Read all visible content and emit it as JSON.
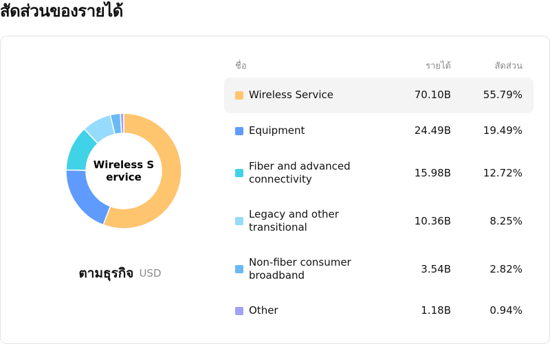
{
  "page": {
    "title": "สัดส่วนของรายได้"
  },
  "donut": {
    "center_label": "Wireless Service"
  },
  "caption": {
    "label": "ตามธุรกิจ",
    "unit": "USD"
  },
  "table": {
    "headers": {
      "name": "ชื่อ",
      "revenue": "รายได้",
      "share": "สัดส่วน"
    },
    "highlighted_index": 0
  },
  "chart_data": {
    "type": "pie",
    "title": "สัดส่วนของรายได้",
    "unit": "USD",
    "categories": [
      "Wireless Service",
      "Equipment",
      "Fiber and advanced connectivity",
      "Legacy and other transitional",
      "Non-fiber consumer broadband",
      "Other"
    ],
    "revenue_labels": [
      "70.10B",
      "24.49B",
      "15.98B",
      "10.36B",
      "3.54B",
      "1.18B"
    ],
    "share_labels": [
      "55.79%",
      "19.49%",
      "12.72%",
      "8.25%",
      "2.82%",
      "0.94%"
    ],
    "values": [
      55.79,
      19.49,
      12.72,
      8.25,
      2.82,
      0.94
    ],
    "colors": [
      "#fec46e",
      "#5f9bfd",
      "#40d2e6",
      "#96dbfc",
      "#6ab9f5",
      "#a3a1f6"
    ]
  }
}
